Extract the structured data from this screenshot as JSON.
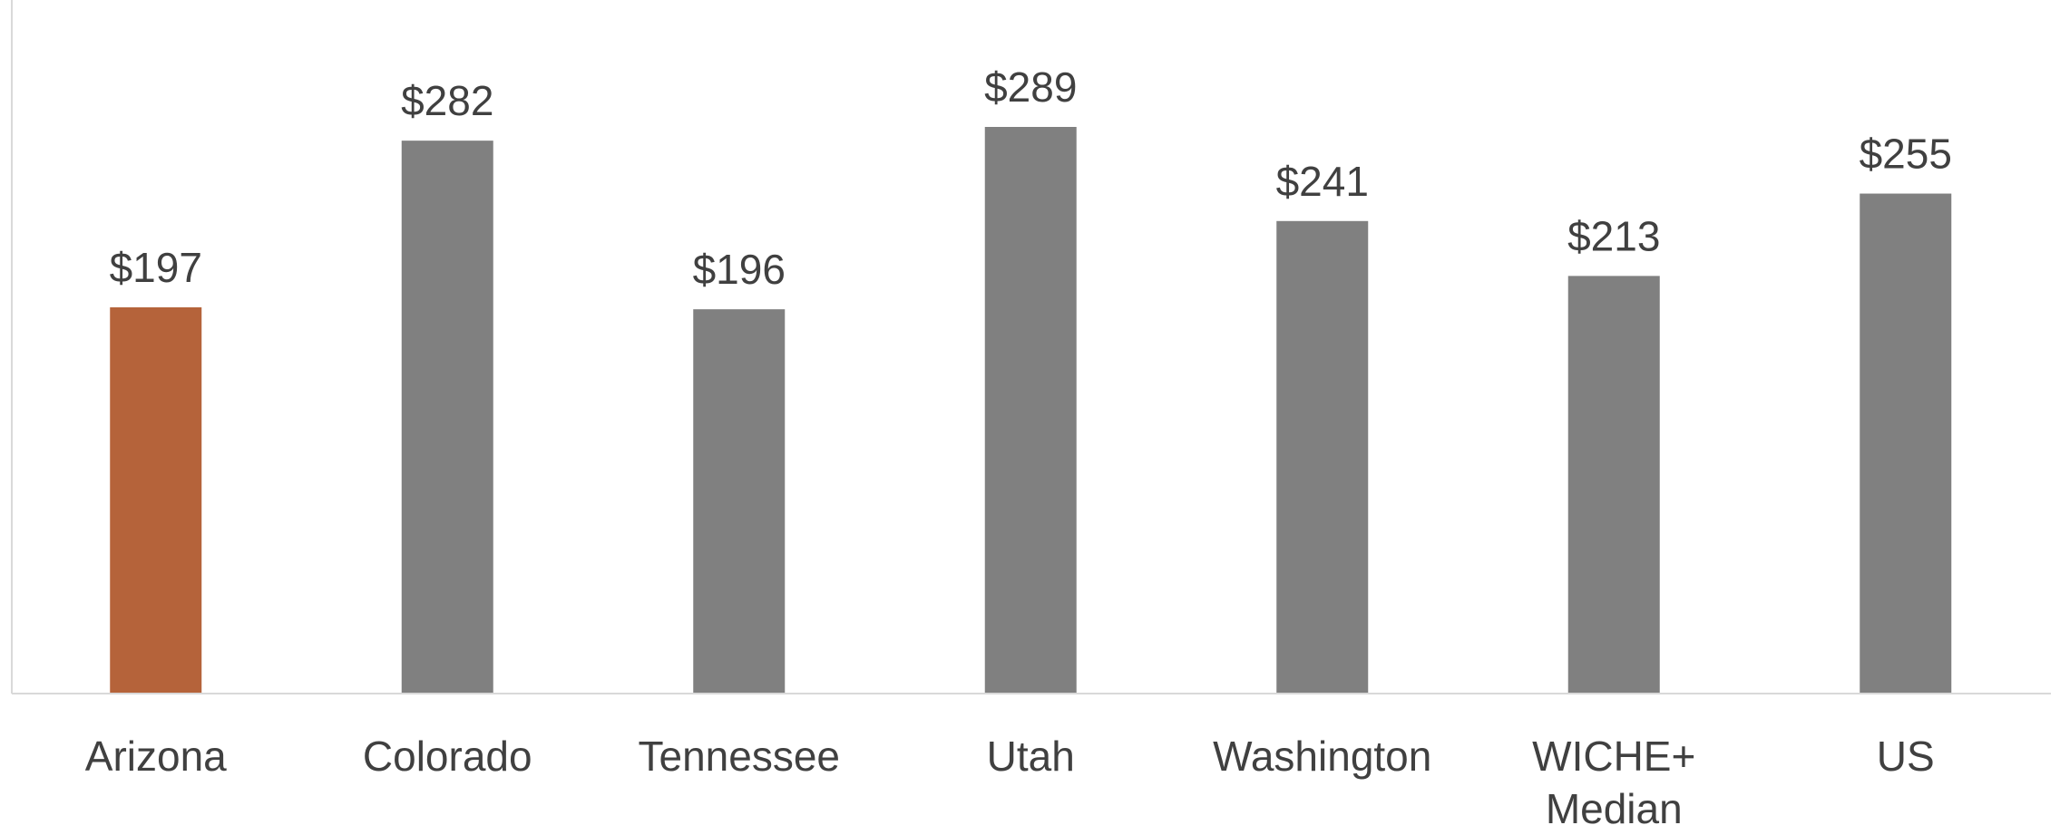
{
  "chart_data": {
    "type": "bar",
    "categories": [
      "Arizona",
      "Colorado",
      "Tennessee",
      "Utah",
      "Washington",
      "WICHE+ Median",
      "US"
    ],
    "values": [
      197,
      282,
      196,
      289,
      241,
      213,
      255
    ],
    "value_labels": [
      "$197",
      "$282",
      "$196",
      "$289",
      "$241",
      "$213",
      "$255"
    ],
    "colors": [
      "#b5633a",
      "#808080",
      "#808080",
      "#808080",
      "#808080",
      "#808080",
      "#808080"
    ]
  }
}
